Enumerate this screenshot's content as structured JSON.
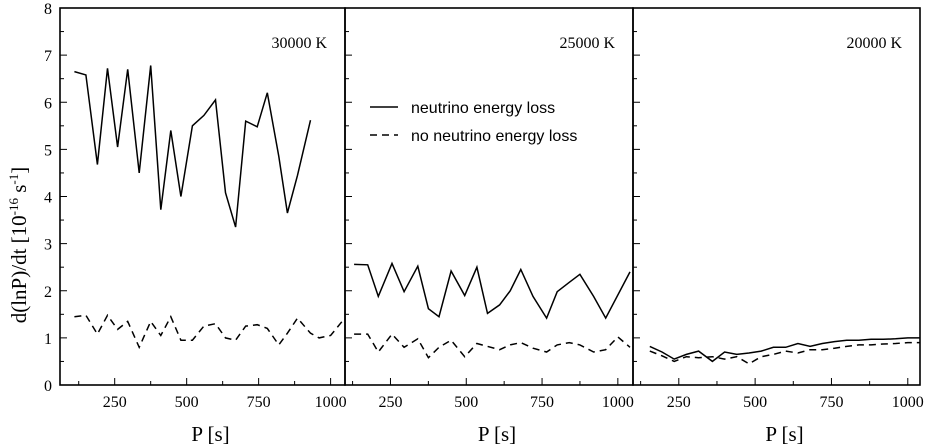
{
  "chart_data": {
    "type": "line",
    "ylabel_main": "d(lnP)/dt  [10",
    "ylabel_exp1": "-16",
    "ylabel_unit": " s",
    "ylabel_exp2": "-1",
    "ylabel_close": "]",
    "ylim": [
      0,
      8
    ],
    "yticks": [
      "0",
      "1",
      "2",
      "3",
      "4",
      "5",
      "6",
      "7",
      "8"
    ],
    "legend": {
      "solid": "neutrino energy loss",
      "dashed": "no neutrino energy loss"
    },
    "panels": [
      {
        "label": "30000 K",
        "xlabel": "P [s]",
        "xlim": [
          60,
          1050
        ],
        "xticks": [
          "250",
          "500",
          "750",
          "1000"
        ],
        "xtick_values": [
          250,
          500,
          750,
          1000
        ],
        "series": [
          {
            "style": "solid",
            "x": [
              110,
              150,
              190,
              225,
              260,
              295,
              335,
              375,
              410,
              445,
              480,
              520,
              560,
              600,
              635,
              670,
              705,
              745,
              780,
              820,
              850,
              885,
              930
            ],
            "y": [
              6.65,
              6.58,
              4.68,
              6.72,
              5.05,
              6.7,
              4.5,
              6.78,
              3.72,
              5.4,
              4.0,
              5.5,
              5.72,
              6.05,
              4.08,
              3.35,
              5.6,
              5.48,
              6.2,
              4.85,
              3.65,
              4.45,
              5.62
            ]
          },
          {
            "style": "dashed",
            "x": [
              110,
              150,
              190,
              225,
              260,
              295,
              335,
              375,
              410,
              445,
              480,
              520,
              560,
              600,
              635,
              670,
              705,
              745,
              780,
              820,
              850,
              885,
              930,
              960,
              1000,
              1040
            ],
            "y": [
              1.45,
              1.48,
              1.08,
              1.48,
              1.18,
              1.35,
              0.8,
              1.35,
              1.05,
              1.45,
              0.95,
              0.95,
              1.25,
              1.3,
              1.0,
              0.95,
              1.25,
              1.28,
              1.2,
              0.85,
              1.1,
              1.42,
              1.1,
              1.0,
              1.05,
              1.35
            ]
          }
        ]
      },
      {
        "label": "25000 K",
        "xlabel": "P [s]",
        "xlim": [
          100,
          1050
        ],
        "xticks": [
          "250",
          "500",
          "750",
          "1000"
        ],
        "xtick_values": [
          250,
          500,
          750,
          1000
        ],
        "series": [
          {
            "style": "solid",
            "x": [
              130,
              175,
              210,
              255,
              295,
              340,
              375,
              410,
              450,
              495,
              535,
              570,
              610,
              645,
              680,
              720,
              765,
              800,
              840,
              875,
              920,
              960,
              1040
            ],
            "y": [
              2.56,
              2.55,
              1.88,
              2.58,
              1.98,
              2.52,
              1.62,
              1.45,
              2.42,
              1.9,
              2.5,
              1.52,
              1.7,
              2.0,
              2.45,
              1.88,
              1.42,
              1.98,
              2.18,
              2.35,
              1.88,
              1.42,
              2.4
            ]
          },
          {
            "style": "dashed",
            "x": [
              130,
              175,
              210,
              255,
              295,
              340,
              375,
              410,
              450,
              495,
              535,
              570,
              610,
              645,
              680,
              720,
              765,
              800,
              840,
              875,
              920,
              960,
              1000,
              1040
            ],
            "y": [
              1.08,
              1.08,
              0.7,
              1.08,
              0.8,
              0.98,
              0.58,
              0.8,
              0.95,
              0.6,
              0.88,
              0.82,
              0.75,
              0.85,
              0.9,
              0.78,
              0.7,
              0.85,
              0.9,
              0.85,
              0.7,
              0.75,
              1.02,
              0.8
            ]
          }
        ]
      },
      {
        "label": "20000 K",
        "xlabel": "P [s]",
        "xlim": [
          100,
          1040
        ],
        "xticks": [
          "250",
          "500",
          "750",
          "1000"
        ],
        "xtick_values": [
          250,
          500,
          750,
          1000
        ],
        "series": [
          {
            "style": "solid",
            "x": [
              155,
              195,
              235,
              275,
              315,
              360,
              400,
              440,
              480,
              520,
              560,
              600,
              640,
              680,
              720,
              760,
              800,
              840,
              880,
              920,
              960,
              1000,
              1040
            ],
            "y": [
              0.82,
              0.7,
              0.55,
              0.65,
              0.72,
              0.5,
              0.7,
              0.65,
              0.68,
              0.72,
              0.8,
              0.8,
              0.88,
              0.82,
              0.88,
              0.92,
              0.95,
              0.95,
              0.97,
              0.97,
              0.98,
              1.0,
              1.0
            ]
          },
          {
            "style": "dashed",
            "x": [
              155,
              195,
              235,
              275,
              315,
              360,
              400,
              440,
              480,
              520,
              560,
              600,
              640,
              680,
              720,
              760,
              800,
              840,
              880,
              920,
              960,
              1000,
              1040
            ],
            "y": [
              0.72,
              0.62,
              0.5,
              0.6,
              0.58,
              0.6,
              0.55,
              0.6,
              0.45,
              0.6,
              0.65,
              0.72,
              0.68,
              0.75,
              0.75,
              0.78,
              0.82,
              0.85,
              0.85,
              0.87,
              0.88,
              0.9,
              0.9
            ]
          }
        ]
      }
    ]
  }
}
